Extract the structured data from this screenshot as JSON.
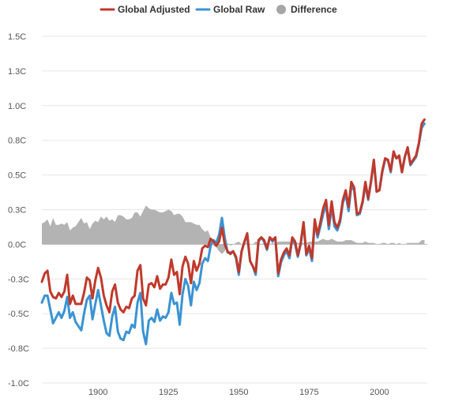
{
  "chart_data": {
    "type": "line",
    "title": "",
    "xlabel": "",
    "ylabel": "",
    "xlim": [
      1880,
      2017
    ],
    "ylim": [
      -1.0,
      1.5
    ],
    "grid": true,
    "legend_position": "top-center",
    "x_ticks": [
      1900,
      1925,
      1950,
      1975,
      2000
    ],
    "y_ticks": [
      {
        "value": 1.5,
        "label": "1.5C"
      },
      {
        "value": 1.25,
        "label": "1.3C"
      },
      {
        "value": 1.0,
        "label": "1.0C"
      },
      {
        "value": 0.75,
        "label": "0.8C"
      },
      {
        "value": 0.5,
        "label": "0.5C"
      },
      {
        "value": 0.25,
        "label": "0.3C"
      },
      {
        "value": 0.0,
        "label": "0.0C"
      },
      {
        "value": -0.25,
        "label": "-0.3C"
      },
      {
        "value": -0.5,
        "label": "-0.5C"
      },
      {
        "value": -0.75,
        "label": "-0.8C"
      },
      {
        "value": -1.0,
        "label": "-1.0C"
      }
    ],
    "x": [
      1880,
      1881,
      1882,
      1883,
      1884,
      1885,
      1886,
      1887,
      1888,
      1889,
      1890,
      1891,
      1892,
      1893,
      1894,
      1895,
      1896,
      1897,
      1898,
      1899,
      1900,
      1901,
      1902,
      1903,
      1904,
      1905,
      1906,
      1907,
      1908,
      1909,
      1910,
      1911,
      1912,
      1913,
      1914,
      1915,
      1916,
      1917,
      1918,
      1919,
      1920,
      1921,
      1922,
      1923,
      1924,
      1925,
      1926,
      1927,
      1928,
      1929,
      1930,
      1931,
      1932,
      1933,
      1934,
      1935,
      1936,
      1937,
      1938,
      1939,
      1940,
      1941,
      1942,
      1943,
      1944,
      1945,
      1946,
      1947,
      1948,
      1949,
      1950,
      1951,
      1952,
      1953,
      1954,
      1955,
      1956,
      1957,
      1958,
      1959,
      1960,
      1961,
      1962,
      1963,
      1964,
      1965,
      1966,
      1967,
      1968,
      1969,
      1970,
      1971,
      1972,
      1973,
      1974,
      1975,
      1976,
      1977,
      1978,
      1979,
      1980,
      1981,
      1982,
      1983,
      1984,
      1985,
      1986,
      1987,
      1988,
      1989,
      1990,
      1991,
      1992,
      1993,
      1994,
      1995,
      1996,
      1997,
      1998,
      1999,
      2000,
      2001,
      2002,
      2003,
      2004,
      2005,
      2006,
      2007,
      2008,
      2009,
      2010,
      2011,
      2012,
      2013,
      2014,
      2015,
      2016
    ],
    "series": [
      {
        "name": "Global Adjusted",
        "color": "#c0392b",
        "values": [
          -0.27,
          -0.21,
          -0.19,
          -0.34,
          -0.38,
          -0.39,
          -0.35,
          -0.38,
          -0.34,
          -0.22,
          -0.43,
          -0.37,
          -0.43,
          -0.43,
          -0.43,
          -0.35,
          -0.24,
          -0.26,
          -0.39,
          -0.26,
          -0.17,
          -0.24,
          -0.37,
          -0.44,
          -0.49,
          -0.34,
          -0.29,
          -0.42,
          -0.47,
          -0.49,
          -0.45,
          -0.46,
          -0.39,
          -0.37,
          -0.19,
          -0.15,
          -0.39,
          -0.44,
          -0.29,
          -0.28,
          -0.31,
          -0.23,
          -0.32,
          -0.29,
          -0.29,
          -0.24,
          -0.11,
          -0.22,
          -0.2,
          -0.36,
          -0.16,
          -0.09,
          -0.14,
          -0.28,
          -0.12,
          -0.19,
          -0.14,
          -0.03,
          -0.01,
          -0.02,
          0.04,
          0.02,
          -0.01,
          0.02,
          0.12,
          0.0,
          -0.05,
          -0.07,
          -0.05,
          -0.09,
          -0.2,
          -0.05,
          0.02,
          0.08,
          -0.12,
          -0.16,
          -0.2,
          0.03,
          0.05,
          0.03,
          -0.03,
          0.05,
          0.03,
          0.05,
          -0.21,
          -0.11,
          -0.06,
          -0.03,
          -0.08,
          0.05,
          0.02,
          -0.08,
          0.01,
          0.16,
          -0.07,
          -0.01,
          -0.1,
          0.18,
          0.07,
          0.16,
          0.26,
          0.32,
          0.14,
          0.31,
          0.16,
          0.12,
          0.18,
          0.32,
          0.39,
          0.27,
          0.45,
          0.41,
          0.22,
          0.23,
          0.31,
          0.45,
          0.33,
          0.46,
          0.61,
          0.38,
          0.39,
          0.53,
          0.62,
          0.61,
          0.53,
          0.67,
          0.62,
          0.64,
          0.52,
          0.63,
          0.7,
          0.58,
          0.61,
          0.64,
          0.73,
          0.87,
          0.9
        ]
      },
      {
        "name": "Global Raw",
        "color": "#3a93d3",
        "values": [
          -0.42,
          -0.37,
          -0.37,
          -0.47,
          -0.57,
          -0.53,
          -0.49,
          -0.53,
          -0.48,
          -0.38,
          -0.53,
          -0.49,
          -0.56,
          -0.59,
          -0.62,
          -0.5,
          -0.4,
          -0.37,
          -0.54,
          -0.43,
          -0.33,
          -0.44,
          -0.55,
          -0.64,
          -0.66,
          -0.52,
          -0.45,
          -0.63,
          -0.68,
          -0.69,
          -0.63,
          -0.64,
          -0.58,
          -0.6,
          -0.42,
          -0.35,
          -0.63,
          -0.72,
          -0.55,
          -0.53,
          -0.56,
          -0.47,
          -0.55,
          -0.52,
          -0.53,
          -0.49,
          -0.35,
          -0.43,
          -0.42,
          -0.58,
          -0.36,
          -0.25,
          -0.3,
          -0.44,
          -0.27,
          -0.33,
          -0.28,
          -0.14,
          -0.1,
          -0.12,
          -0.01,
          0.03,
          0.01,
          0.07,
          0.19,
          0.05,
          -0.06,
          -0.06,
          -0.05,
          -0.1,
          -0.22,
          -0.05,
          0.02,
          0.06,
          -0.12,
          -0.16,
          -0.22,
          0.02,
          0.05,
          0.02,
          -0.04,
          0.05,
          0.02,
          0.05,
          -0.23,
          -0.13,
          -0.08,
          -0.05,
          -0.1,
          0.04,
          0.0,
          -0.09,
          0.0,
          0.15,
          -0.08,
          -0.03,
          -0.12,
          0.16,
          0.05,
          0.13,
          0.22,
          0.29,
          0.11,
          0.27,
          0.13,
          0.1,
          0.16,
          0.3,
          0.36,
          0.24,
          0.42,
          0.39,
          0.21,
          0.22,
          0.3,
          0.43,
          0.32,
          0.45,
          0.6,
          0.38,
          0.39,
          0.52,
          0.61,
          0.61,
          0.52,
          0.66,
          0.62,
          0.63,
          0.52,
          0.63,
          0.69,
          0.57,
          0.6,
          0.63,
          0.72,
          0.84,
          0.87
        ]
      },
      {
        "name": "Difference",
        "color": "#b3b3b3",
        "values": [
          0.15,
          0.16,
          0.18,
          0.13,
          0.19,
          0.14,
          0.14,
          0.15,
          0.14,
          0.16,
          0.1,
          0.12,
          0.13,
          0.16,
          0.19,
          0.15,
          0.16,
          0.11,
          0.15,
          0.17,
          0.16,
          0.2,
          0.18,
          0.2,
          0.17,
          0.18,
          0.16,
          0.21,
          0.21,
          0.2,
          0.18,
          0.18,
          0.19,
          0.23,
          0.23,
          0.2,
          0.24,
          0.28,
          0.26,
          0.25,
          0.25,
          0.24,
          0.23,
          0.23,
          0.24,
          0.25,
          0.24,
          0.21,
          0.22,
          0.22,
          0.2,
          0.16,
          0.16,
          0.16,
          0.15,
          0.14,
          0.14,
          0.11,
          0.09,
          0.1,
          0.05,
          -0.01,
          -0.02,
          -0.05,
          -0.07,
          -0.05,
          0.01,
          -0.01,
          0.0,
          0.01,
          0.02,
          0.0,
          0.0,
          0.02,
          0.0,
          0.0,
          0.02,
          0.01,
          0.0,
          0.01,
          0.01,
          0.0,
          0.01,
          0.0,
          0.02,
          0.02,
          0.02,
          0.02,
          0.02,
          0.01,
          0.02,
          0.01,
          0.01,
          0.01,
          0.01,
          0.02,
          0.02,
          0.02,
          0.02,
          0.03,
          0.04,
          0.03,
          0.03,
          0.04,
          0.03,
          0.02,
          0.02,
          0.02,
          0.03,
          0.03,
          0.03,
          0.02,
          0.01,
          0.01,
          0.01,
          0.02,
          0.01,
          0.01,
          0.01,
          0.0,
          0.0,
          0.01,
          0.01,
          0.0,
          0.01,
          0.01,
          0.0,
          0.01,
          0.0,
          0.0,
          0.01,
          0.01,
          0.01,
          0.01,
          0.01,
          0.03,
          0.03
        ]
      }
    ]
  }
}
